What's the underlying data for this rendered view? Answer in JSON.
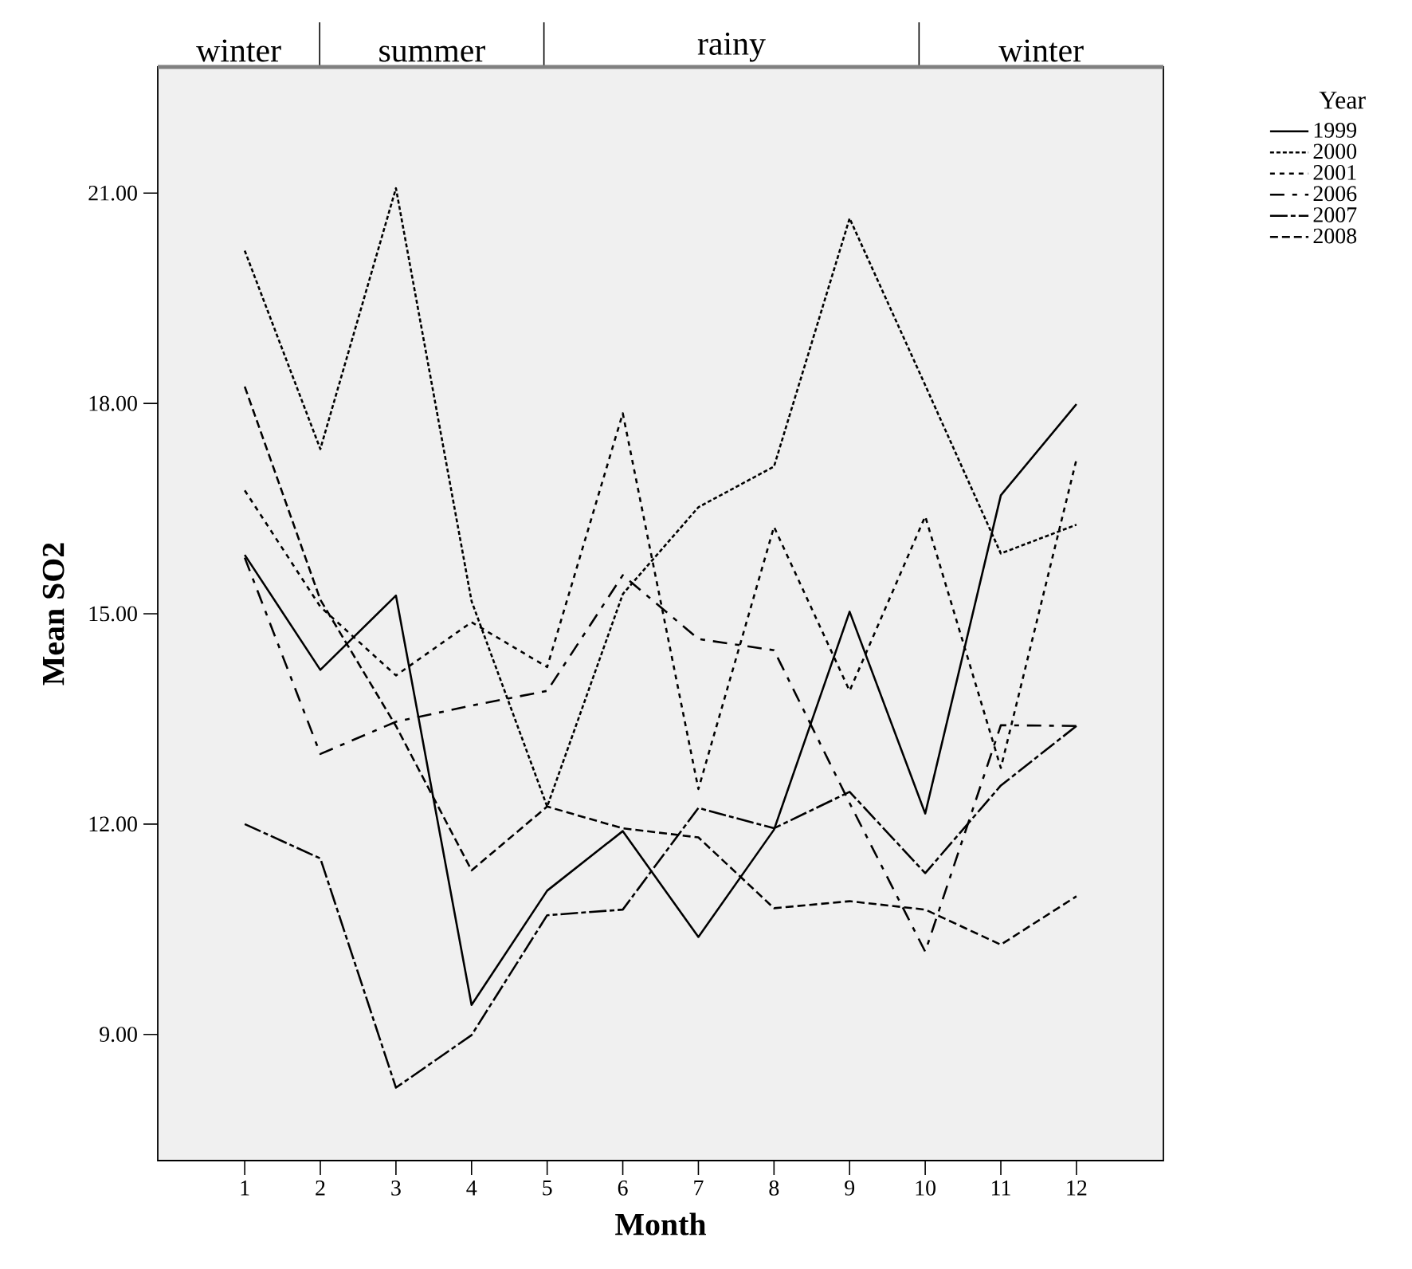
{
  "chart_data": {
    "type": "line",
    "xlabel": "Month",
    "ylabel": "Mean SO2",
    "legend_title": "Year",
    "legend": "right",
    "x": [
      1,
      2,
      3,
      4,
      5,
      6,
      7,
      8,
      9,
      10,
      11,
      12
    ],
    "xlim": [
      -0.15,
      13.15
    ],
    "xticks": [
      1,
      2,
      3,
      4,
      5,
      6,
      7,
      8,
      9,
      10,
      11,
      12
    ],
    "ylim": [
      7.2,
      22.8
    ],
    "yticks": [
      {
        "value": 9,
        "label": "9.00"
      },
      {
        "value": 12,
        "label": "12.00"
      },
      {
        "value": 15,
        "label": "15.00"
      },
      {
        "value": 18,
        "label": "18.00"
      },
      {
        "value": 21,
        "label": "21.00"
      }
    ],
    "annotations": [
      "winter",
      "summer",
      "rainy",
      "winter"
    ],
    "series": [
      {
        "name": "1999",
        "color": "#000000",
        "line_style": "solid",
        "values": [
          15.84,
          14.2,
          15.26,
          9.42,
          11.05,
          11.9,
          10.39,
          11.92,
          15.03,
          12.15,
          16.69,
          17.99
        ]
      },
      {
        "name": "2000",
        "color": "#000000",
        "line_style": "dashed",
        "values": [
          20.18,
          17.35,
          21.07,
          15.18,
          12.25,
          15.28,
          16.52,
          17.1,
          20.64,
          18.26,
          15.86,
          16.27
        ]
      },
      {
        "name": "2001",
        "color": "#000000",
        "line_style": "dashed",
        "values": [
          16.76,
          15.1,
          14.12,
          14.88,
          14.24,
          17.86,
          12.5,
          16.24,
          13.9,
          16.39,
          12.8,
          17.2
        ]
      },
      {
        "name": "2006",
        "color": "#000000",
        "line_style": "dashed",
        "values": [
          15.8,
          13.0,
          13.46,
          13.69,
          13.9,
          15.55,
          14.64,
          14.48,
          12.3,
          10.18,
          13.41,
          13.4
        ]
      },
      {
        "name": "2007",
        "color": "#000000",
        "line_style": "dashed",
        "values": [
          12.0,
          11.51,
          8.24,
          8.99,
          10.7,
          10.78,
          12.23,
          11.94,
          12.46,
          11.3,
          12.55,
          13.4
        ]
      },
      {
        "name": "2008",
        "color": "#000000",
        "line_style": "dashed",
        "values": [
          18.24,
          15.2,
          13.4,
          11.34,
          12.25,
          11.94,
          11.81,
          10.8,
          10.9,
          10.78,
          10.28,
          10.97
        ]
      }
    ]
  }
}
